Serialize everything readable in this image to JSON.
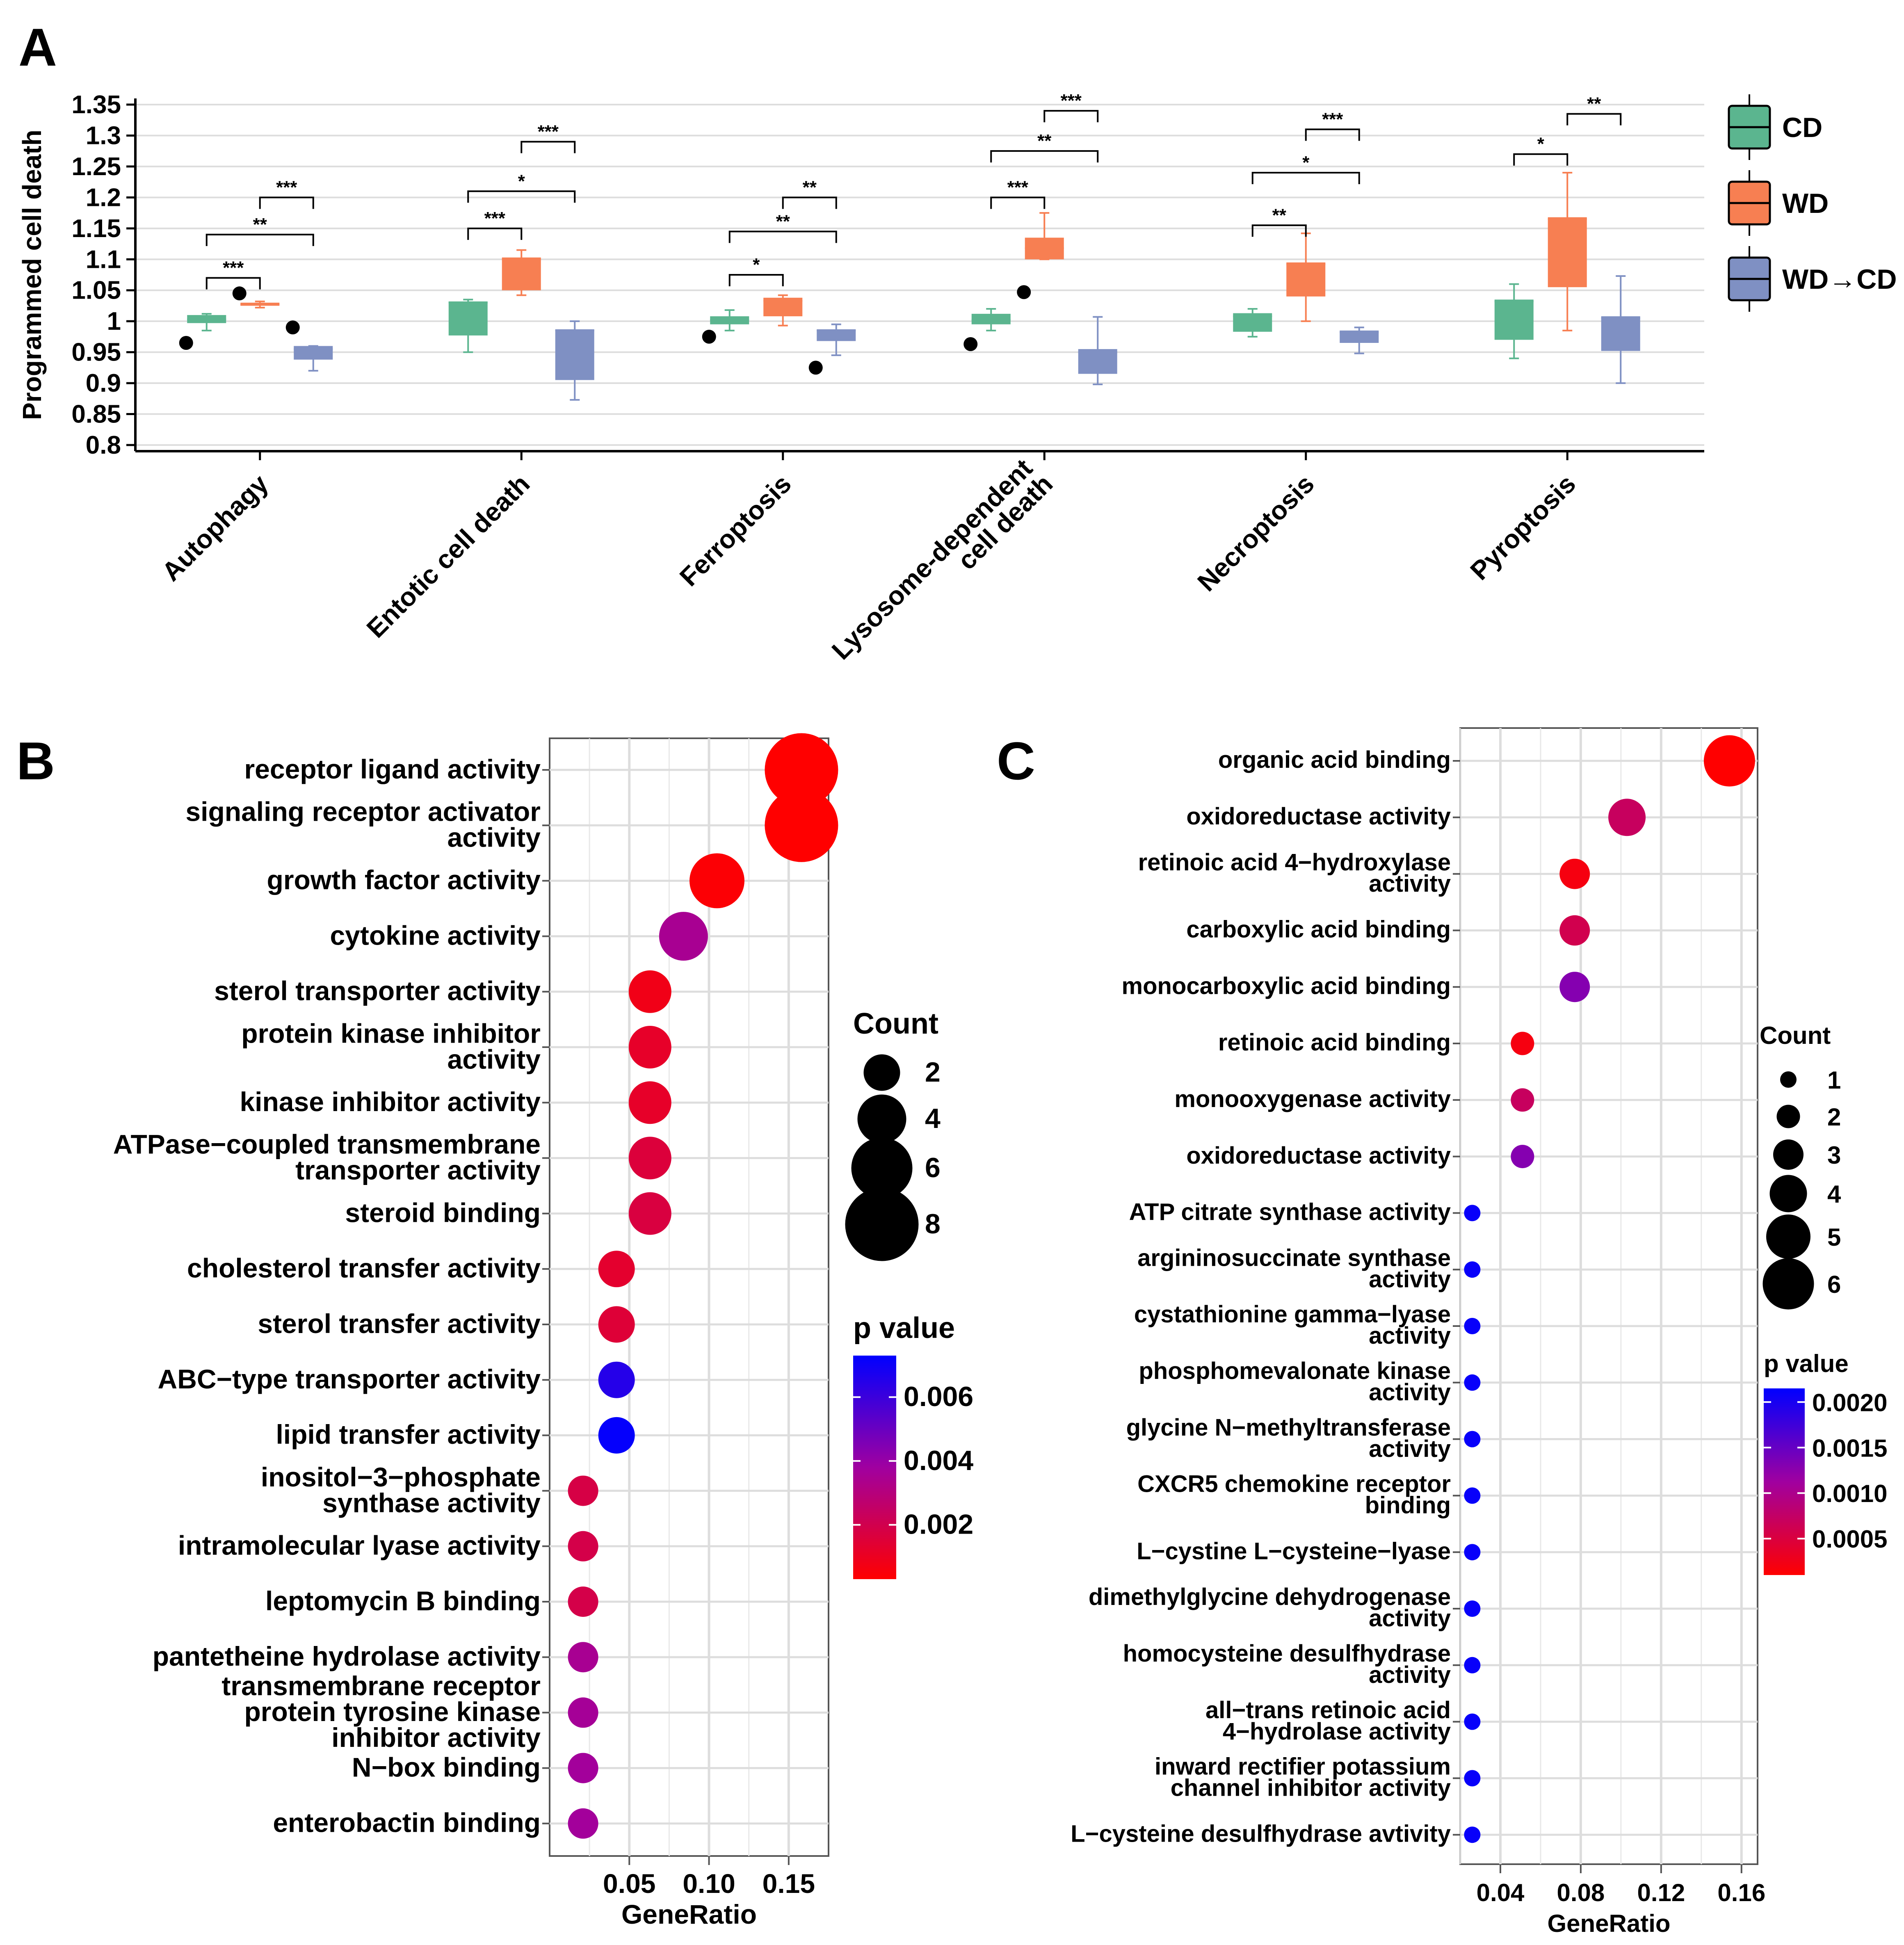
{
  "colors": {
    "CD": "#5BB58F",
    "WD": "#F77F52",
    "WD_CD": "#7F90C3",
    "grid": "#DDDDDD",
    "p_low": "#FF0000",
    "p_high": "#0000FF"
  },
  "chart_data": [
    {
      "panel": "A",
      "type": "box",
      "ylabel": "Programmed cell death",
      "ylim": [
        0.8,
        1.35
      ],
      "yticks": [
        "0.8",
        "0.85",
        "0.9",
        "0.95",
        "1",
        "1.05",
        "1.1",
        "1.15",
        "1.2",
        "1.25",
        "1.3",
        "1.35"
      ],
      "categories": [
        "Autophagy",
        "Entotic cell death",
        "Ferroptosis",
        "Lysosome-dependent\ncell death",
        "Necroptosis",
        "Pyroptosis"
      ],
      "legend": [
        "CD",
        "WD",
        "WD→CD"
      ],
      "series": [
        {
          "name": "CD",
          "boxes": [
            {
              "min": 0.985,
              "q1": 0.997,
              "median": 1.003,
              "q3": 1.01,
              "max": 1.012,
              "outliers": [
                0.965
              ]
            },
            {
              "min": 0.95,
              "q1": 0.977,
              "median": 1.03,
              "q3": 1.032,
              "max": 1.035,
              "outliers": []
            },
            {
              "min": 0.985,
              "q1": 0.995,
              "median": 1.002,
              "q3": 1.008,
              "max": 1.018,
              "outliers": [
                0.975
              ]
            },
            {
              "min": 0.985,
              "q1": 0.995,
              "median": 1.002,
              "q3": 1.012,
              "max": 1.02,
              "outliers": [
                0.963
              ]
            },
            {
              "min": 0.975,
              "q1": 0.983,
              "median": 1.008,
              "q3": 1.013,
              "max": 1.02,
              "outliers": []
            },
            {
              "min": 0.94,
              "q1": 0.97,
              "median": 1.032,
              "q3": 1.035,
              "max": 1.06,
              "outliers": []
            }
          ]
        },
        {
          "name": "WD",
          "boxes": [
            {
              "min": 1.022,
              "q1": 1.025,
              "median": 1.027,
              "q3": 1.03,
              "max": 1.032,
              "outliers": [
                1.045
              ]
            },
            {
              "min": 1.042,
              "q1": 1.05,
              "median": 1.1,
              "q3": 1.103,
              "max": 1.115,
              "outliers": []
            },
            {
              "min": 0.993,
              "q1": 1.008,
              "median": 1.033,
              "q3": 1.038,
              "max": 1.042,
              "outliers": []
            },
            {
              "min": 1.1,
              "q1": 1.1,
              "median": 1.118,
              "q3": 1.135,
              "max": 1.175,
              "outliers": [
                1.047
              ]
            },
            {
              "min": 1.0,
              "q1": 1.04,
              "median": 1.092,
              "q3": 1.095,
              "max": 1.142,
              "outliers": []
            },
            {
              "min": 0.985,
              "q1": 1.055,
              "median": 1.165,
              "q3": 1.168,
              "max": 1.24,
              "outliers": []
            }
          ]
        },
        {
          "name": "WD→CD",
          "boxes": [
            {
              "min": 0.92,
              "q1": 0.938,
              "median": 0.955,
              "q3": 0.96,
              "max": 0.96,
              "outliers": [
                0.99
              ]
            },
            {
              "min": 0.873,
              "q1": 0.905,
              "median": 0.985,
              "q3": 0.987,
              "max": 1.0,
              "outliers": []
            },
            {
              "min": 0.945,
              "q1": 0.968,
              "median": 0.985,
              "q3": 0.987,
              "max": 0.995,
              "outliers": [
                0.925
              ]
            },
            {
              "min": 0.898,
              "q1": 0.915,
              "median": 0.95,
              "q3": 0.955,
              "max": 1.007,
              "outliers": []
            },
            {
              "min": 0.948,
              "q1": 0.965,
              "median": 0.982,
              "q3": 0.985,
              "max": 0.99,
              "outliers": []
            },
            {
              "min": 0.9,
              "q1": 0.952,
              "median": 1.005,
              "q3": 1.008,
              "max": 1.073,
              "outliers": []
            }
          ]
        }
      ],
      "significance": [
        {
          "cat": 0,
          "from": 0,
          "to": 1,
          "y": 1.07,
          "label": "***"
        },
        {
          "cat": 0,
          "from": 0,
          "to": 2,
          "y": 1.14,
          "label": "**"
        },
        {
          "cat": 0,
          "from": 1,
          "to": 2,
          "y": 1.2,
          "label": "***"
        },
        {
          "cat": 1,
          "from": 0,
          "to": 1,
          "y": 1.15,
          "label": "***"
        },
        {
          "cat": 1,
          "from": 0,
          "to": 2,
          "y": 1.21,
          "label": "*"
        },
        {
          "cat": 1,
          "from": 1,
          "to": 2,
          "y": 1.29,
          "label": "***"
        },
        {
          "cat": 2,
          "from": 0,
          "to": 1,
          "y": 1.075,
          "label": "*"
        },
        {
          "cat": 2,
          "from": 0,
          "to": 2,
          "y": 1.145,
          "label": "**"
        },
        {
          "cat": 2,
          "from": 1,
          "to": 2,
          "y": 1.2,
          "label": "**"
        },
        {
          "cat": 3,
          "from": 0,
          "to": 1,
          "y": 1.2,
          "label": "***"
        },
        {
          "cat": 3,
          "from": 0,
          "to": 2,
          "y": 1.275,
          "label": "**"
        },
        {
          "cat": 3,
          "from": 1,
          "to": 2,
          "y": 1.34,
          "label": "***"
        },
        {
          "cat": 4,
          "from": 0,
          "to": 1,
          "y": 1.155,
          "label": "**"
        },
        {
          "cat": 4,
          "from": 0,
          "to": 2,
          "y": 1.24,
          "label": "*"
        },
        {
          "cat": 4,
          "from": 1,
          "to": 2,
          "y": 1.31,
          "label": "***"
        },
        {
          "cat": 5,
          "from": 0,
          "to": 1,
          "y": 1.27,
          "label": "*"
        },
        {
          "cat": 5,
          "from": 1,
          "to": 2,
          "y": 1.335,
          "label": "**"
        }
      ]
    },
    {
      "panel": "B",
      "type": "scatter",
      "xlabel": "GeneRatio",
      "xlim": [
        0.0,
        0.175
      ],
      "xticks": [
        "0.05",
        "0.10",
        "0.15"
      ],
      "size_legend_title": "Count",
      "size_legend": [
        "2",
        "4",
        "6",
        "8"
      ],
      "color_legend_title": "p value",
      "color_legend": [
        "0.006",
        "0.004",
        "0.002"
      ],
      "terms": [
        {
          "label": [
            "receptor ligand activity"
          ],
          "x": 0.158,
          "count": 8,
          "p": 0.0003
        },
        {
          "label": [
            "signaling receptor activator",
            "activity"
          ],
          "x": 0.158,
          "count": 8,
          "p": 0.0003
        },
        {
          "label": [
            "growth factor activity"
          ],
          "x": 0.105,
          "count": 5,
          "p": 0.0004
        },
        {
          "label": [
            "cytokine activity"
          ],
          "x": 0.084,
          "count": 4,
          "p": 0.0035
        },
        {
          "label": [
            "sterol transporter activity"
          ],
          "x": 0.063,
          "count": 3,
          "p": 0.0008
        },
        {
          "label": [
            "protein kinase inhibitor",
            "activity"
          ],
          "x": 0.063,
          "count": 3,
          "p": 0.0012
        },
        {
          "label": [
            "kinase inhibitor activity"
          ],
          "x": 0.063,
          "count": 3,
          "p": 0.0012
        },
        {
          "label": [
            "ATPase−coupled transmembrane",
            "transporter activity"
          ],
          "x": 0.063,
          "count": 3,
          "p": 0.0016
        },
        {
          "label": [
            "steroid binding"
          ],
          "x": 0.063,
          "count": 3,
          "p": 0.0017
        },
        {
          "label": [
            "cholesterol transfer activity"
          ],
          "x": 0.042,
          "count": 2,
          "p": 0.0013
        },
        {
          "label": [
            "sterol transfer activity"
          ],
          "x": 0.042,
          "count": 2,
          "p": 0.0015
        },
        {
          "label": [
            "ABC−type transporter activity"
          ],
          "x": 0.042,
          "count": 2,
          "p": 0.0065
        },
        {
          "label": [
            "lipid transfer activity"
          ],
          "x": 0.042,
          "count": 2,
          "p": 0.0072
        },
        {
          "label": [
            "inositol−3−phosphate",
            "synthase activity"
          ],
          "x": 0.021,
          "count": 1,
          "p": 0.0018
        },
        {
          "label": [
            "intramolecular lyase activity"
          ],
          "x": 0.021,
          "count": 1,
          "p": 0.0019
        },
        {
          "label": [
            "leptomycin B binding"
          ],
          "x": 0.021,
          "count": 1,
          "p": 0.0019
        },
        {
          "label": [
            "pantetheine hydrolase activity"
          ],
          "x": 0.021,
          "count": 1,
          "p": 0.0035
        },
        {
          "label": [
            "transmembrane receptor",
            "protein tyrosine kinase",
            "inhibitor activity"
          ],
          "x": 0.021,
          "count": 1,
          "p": 0.0036
        },
        {
          "label": [
            "N−box binding"
          ],
          "x": 0.021,
          "count": 1,
          "p": 0.0037
        },
        {
          "label": [
            "enterobactin binding"
          ],
          "x": 0.021,
          "count": 1,
          "p": 0.0037
        }
      ]
    },
    {
      "panel": "C",
      "type": "scatter",
      "xlabel": "GeneRatio",
      "xlim": [
        0.02,
        0.168
      ],
      "xticks": [
        "0.04",
        "0.08",
        "0.12",
        "0.16"
      ],
      "size_legend_title": "Count",
      "size_legend": [
        "1",
        "2",
        "3",
        "4",
        "5",
        "6"
      ],
      "color_legend_title": "p value",
      "color_legend": [
        "0.0020",
        "0.0015",
        "0.0010",
        "0.0005"
      ],
      "terms": [
        {
          "label": [
            "organic acid binding"
          ],
          "x": 0.154,
          "count": 6,
          "p": 2e-05
        },
        {
          "label": [
            "oxidoreductase activity"
          ],
          "x": 0.103,
          "count": 4,
          "p": 0.0007
        },
        {
          "label": [
            "retinoic acid 4−hydroxylase",
            "activity"
          ],
          "x": 0.077,
          "count": 3,
          "p": 0.0002
        },
        {
          "label": [
            "carboxylic acid binding"
          ],
          "x": 0.077,
          "count": 3,
          "p": 0.0006
        },
        {
          "label": [
            "monocarboxylic acid binding"
          ],
          "x": 0.077,
          "count": 3,
          "p": 0.0013
        },
        {
          "label": [
            "retinoic acid binding"
          ],
          "x": 0.051,
          "count": 2,
          "p": 0.0002
        },
        {
          "label": [
            "monooxygenase activity"
          ],
          "x": 0.051,
          "count": 2,
          "p": 0.0007
        },
        {
          "label": [
            "oxidoreductase activity"
          ],
          "x": 0.051,
          "count": 2,
          "p": 0.0013
        },
        {
          "label": [
            "ATP citrate synthase activity"
          ],
          "x": 0.026,
          "count": 1,
          "p": 0.0021
        },
        {
          "label": [
            "argininosuccinate synthase",
            "activity"
          ],
          "x": 0.026,
          "count": 1,
          "p": 0.0021
        },
        {
          "label": [
            "cystathionine gamma−lyase",
            "activity"
          ],
          "x": 0.026,
          "count": 1,
          "p": 0.0021
        },
        {
          "label": [
            "phosphomevalonate kinase",
            "activity"
          ],
          "x": 0.026,
          "count": 1,
          "p": 0.0021
        },
        {
          "label": [
            "glycine N−methyltransferase",
            "activity"
          ],
          "x": 0.026,
          "count": 1,
          "p": 0.0021
        },
        {
          "label": [
            "CXCR5 chemokine receptor",
            "binding"
          ],
          "x": 0.026,
          "count": 1,
          "p": 0.0021
        },
        {
          "label": [
            "L−cystine L−cysteine−lyase"
          ],
          "x": 0.026,
          "count": 1,
          "p": 0.0021
        },
        {
          "label": [
            "dimethylglycine dehydrogenase",
            "activity"
          ],
          "x": 0.026,
          "count": 1,
          "p": 0.0021
        },
        {
          "label": [
            "homocysteine desulfhydrase",
            "activity"
          ],
          "x": 0.026,
          "count": 1,
          "p": 0.0021
        },
        {
          "label": [
            "all−trans retinoic acid",
            "4−hydrolase activity"
          ],
          "x": 0.026,
          "count": 1,
          "p": 0.0021
        },
        {
          "label": [
            "inward rectifier potassium",
            "channel inhibitor activity"
          ],
          "x": 0.026,
          "count": 1,
          "p": 0.0021
        },
        {
          "label": [
            "L−cysteine desulfhydrase avtivity"
          ],
          "x": 0.026,
          "count": 1,
          "p": 0.0021
        }
      ]
    }
  ],
  "panels": {
    "a": "A",
    "b": "B",
    "c": "C"
  }
}
